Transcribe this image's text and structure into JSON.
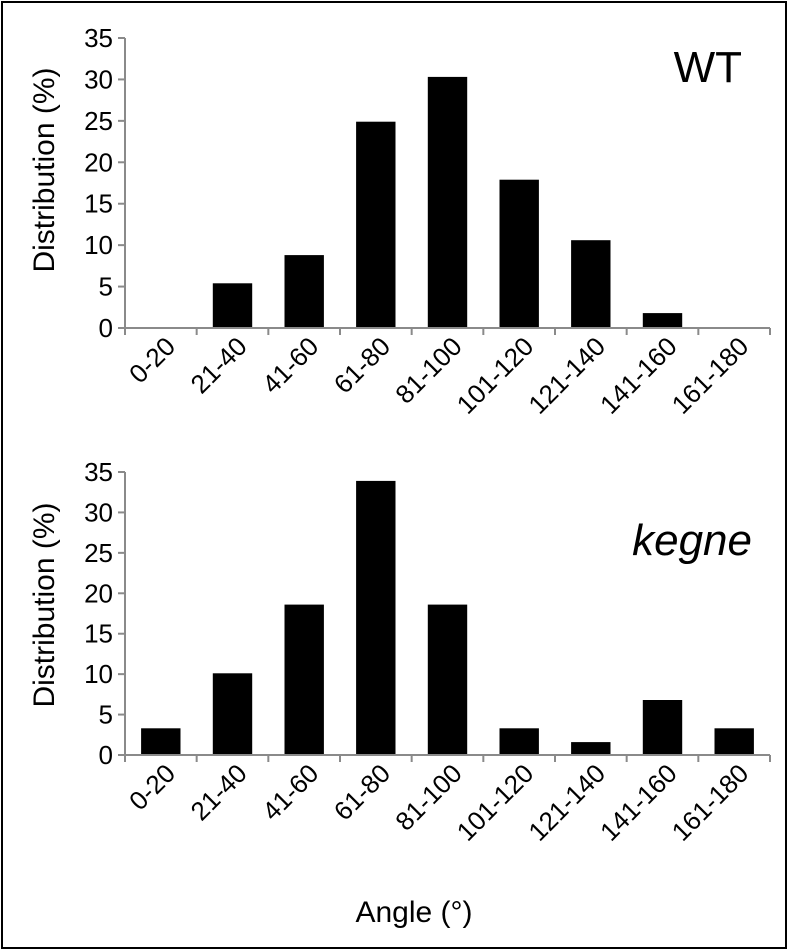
{
  "chart_data": [
    {
      "type": "bar",
      "panel_label": "WT",
      "ylabel": "Distribution (%)",
      "xlabel": "",
      "ylim": [
        0,
        35
      ],
      "yticks": [
        0,
        5,
        10,
        15,
        20,
        25,
        30,
        35
      ],
      "categories": [
        "0-20",
        "21-40",
        "41-60",
        "61-80",
        "81-100",
        "101-120",
        "121-140",
        "141-160",
        "161-180"
      ],
      "values": [
        0,
        5.4,
        8.8,
        24.9,
        30.3,
        17.9,
        10.6,
        1.8,
        0
      ],
      "bar_color": "#000000",
      "grid": false,
      "legend": false
    },
    {
      "type": "bar",
      "panel_label": "kegne",
      "ylabel": "Distribution (%)",
      "xlabel": "Angle (°)",
      "ylim": [
        0,
        35
      ],
      "yticks": [
        0,
        5,
        10,
        15,
        20,
        25,
        30,
        35
      ],
      "categories": [
        "0-20",
        "21-40",
        "41-60",
        "61-80",
        "81-100",
        "101-120",
        "121-140",
        "141-160",
        "161-180"
      ],
      "values": [
        3.3,
        10.1,
        18.6,
        33.9,
        18.6,
        3.3,
        1.6,
        6.8,
        3.3
      ],
      "bar_color": "#000000",
      "grid": false,
      "legend": false
    }
  ]
}
